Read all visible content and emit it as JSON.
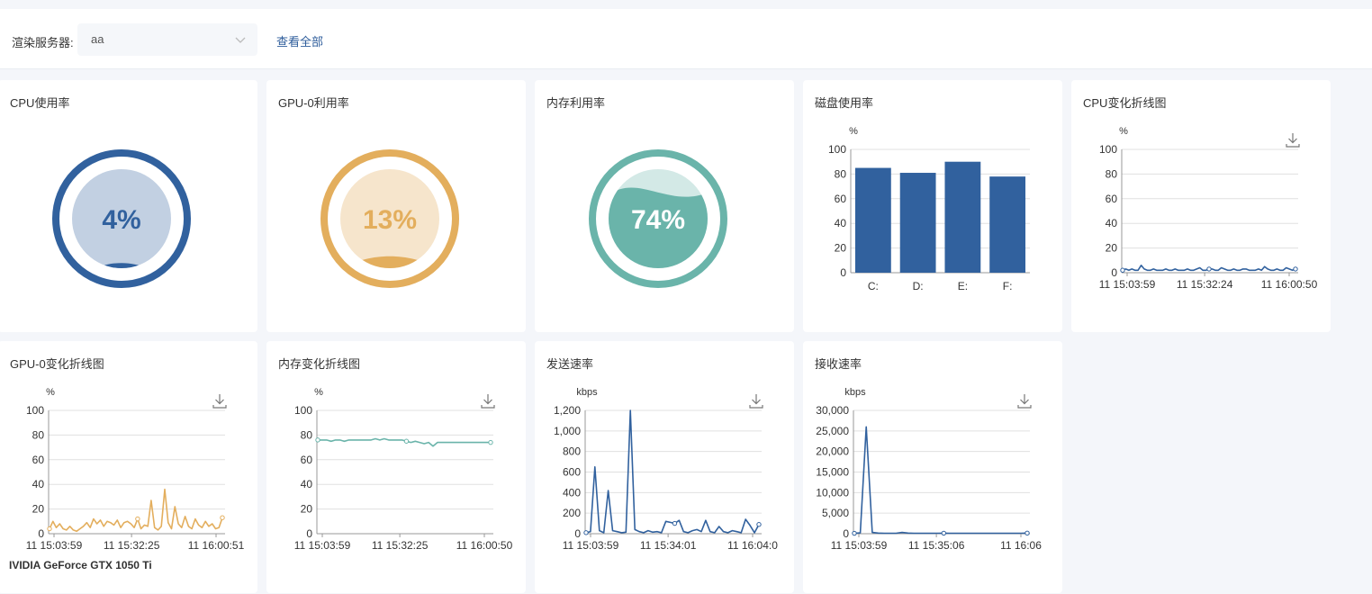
{
  "filter": {
    "label": "渲染服务器:",
    "selected": "aa",
    "view_all": "查看全部"
  },
  "gauges": [
    {
      "title": "CPU使用率",
      "value": 4,
      "label": "4%",
      "ring": "#31619e",
      "fill": "#c2d0e2",
      "wave": "#31619e",
      "text": "#31619e"
    },
    {
      "title": "GPU-0利用率",
      "value": 13,
      "label": "13%",
      "ring": "#e3ae5d",
      "fill": "#f6e5cc",
      "wave": "#e3ae5d",
      "text": "#e3ae5d"
    },
    {
      "title": "内存利用率",
      "value": 74,
      "label": "74%",
      "ring": "#6ab4aa",
      "fill": "#d3e9e6",
      "wave": "#6ab4aa",
      "text": "#ffffff"
    }
  ],
  "disk": {
    "title": "磁盘使用率",
    "chart_data": {
      "type": "bar",
      "ylabel": "%",
      "ylim": [
        0,
        100
      ],
      "yticks": [
        "0",
        "20",
        "40",
        "60",
        "80",
        "100"
      ],
      "categories": [
        "C:",
        "D:",
        "E:",
        "F:"
      ],
      "values": [
        85,
        81,
        90,
        78
      ],
      "color": "#31619e"
    }
  },
  "lines": [
    {
      "title": "CPU变化折线图",
      "ylabel": "%",
      "color": "#31619e",
      "chart_data": {
        "type": "line",
        "ylim": [
          0,
          100
        ],
        "yticks": [
          "0",
          "20",
          "40",
          "60",
          "80",
          "100"
        ],
        "xticks": [
          "11 15:03:59",
          "11 15:32:24",
          "11 16:00:50"
        ],
        "values": [
          2,
          3,
          2,
          3,
          2,
          2,
          6,
          3,
          2,
          2,
          3,
          2,
          2,
          2,
          3,
          2,
          2,
          3,
          2,
          2,
          2,
          3,
          2,
          2,
          3,
          4,
          2,
          2,
          3,
          3,
          2,
          2,
          4,
          3,
          2,
          2,
          3,
          2,
          2,
          3,
          3,
          2,
          2,
          2,
          3,
          2,
          5,
          3,
          2,
          2,
          3,
          2,
          2,
          4,
          3,
          2,
          3
        ]
      }
    },
    {
      "title": "GPU-0变化折线图",
      "ylabel": "%",
      "color": "#e3ae5d",
      "footer": "IVIDIA GeForce GTX 1050 Ti",
      "chart_data": {
        "type": "line",
        "ylim": [
          0,
          100
        ],
        "yticks": [
          "0",
          "20",
          "40",
          "60",
          "80",
          "100"
        ],
        "xticks": [
          "11 15:03:59",
          "11 15:32:25",
          "11 16:00:51"
        ],
        "values": [
          4,
          10,
          5,
          8,
          4,
          3,
          6,
          3,
          2,
          4,
          6,
          9,
          5,
          12,
          8,
          11,
          6,
          10,
          9,
          7,
          11,
          5,
          9,
          10,
          8,
          5,
          12,
          4,
          7,
          6,
          27,
          5,
          3,
          6,
          36,
          9,
          4,
          22,
          8,
          5,
          14,
          6,
          4,
          12,
          7,
          5,
          10,
          6,
          8,
          4,
          5,
          13
        ]
      }
    },
    {
      "title": "内存变化折线图",
      "ylabel": "%",
      "color": "#6ab4aa",
      "chart_data": {
        "type": "line",
        "ylim": [
          0,
          100
        ],
        "yticks": [
          "0",
          "20",
          "40",
          "60",
          "80",
          "100"
        ],
        "xticks": [
          "11 15:03:59",
          "11 15:32:25",
          "11 16:00:50"
        ],
        "values": [
          76,
          76,
          76,
          75,
          76,
          76,
          75,
          76,
          76,
          76,
          76,
          76,
          76,
          77,
          76,
          77,
          76,
          76,
          76,
          76,
          75,
          74,
          75,
          74,
          73,
          74,
          71,
          74,
          74,
          74,
          74,
          74,
          74,
          74,
          74,
          74,
          74,
          74,
          74,
          74
        ]
      }
    },
    {
      "title": "发送速率",
      "ylabel": "kbps",
      "color": "#31619e",
      "chart_data": {
        "type": "line",
        "ylim": [
          0,
          1200
        ],
        "yticks": [
          "0",
          "200",
          "400",
          "600",
          "800",
          "1,000",
          "1,200"
        ],
        "xticks": [
          "11 15:03:59",
          "11 15:34:01",
          "11 16:04:0"
        ],
        "values": [
          10,
          20,
          650,
          30,
          10,
          420,
          30,
          20,
          10,
          15,
          1200,
          40,
          20,
          10,
          30,
          15,
          20,
          10,
          120,
          110,
          100,
          130,
          20,
          10,
          30,
          40,
          20,
          130,
          20,
          10,
          70,
          20,
          10,
          30,
          20,
          10,
          140,
          80,
          10,
          90
        ]
      }
    },
    {
      "title": "接收速率",
      "ylabel": "kbps",
      "color": "#31619e",
      "chart_data": {
        "type": "line",
        "ylim": [
          0,
          30000
        ],
        "yticks": [
          "0",
          "5,000",
          "10,000",
          "15,000",
          "20,000",
          "25,000",
          "30,000"
        ],
        "xticks": [
          "11 15:03:59",
          "11 15:35:06",
          "11 16:06"
        ],
        "values": [
          100,
          200,
          26000,
          300,
          150,
          100,
          120,
          100,
          300,
          150,
          100,
          120,
          100,
          110,
          100,
          130,
          100,
          100,
          120,
          100,
          100,
          110,
          100,
          100,
          120,
          100,
          100,
          110,
          100,
          150
        ]
      }
    }
  ]
}
